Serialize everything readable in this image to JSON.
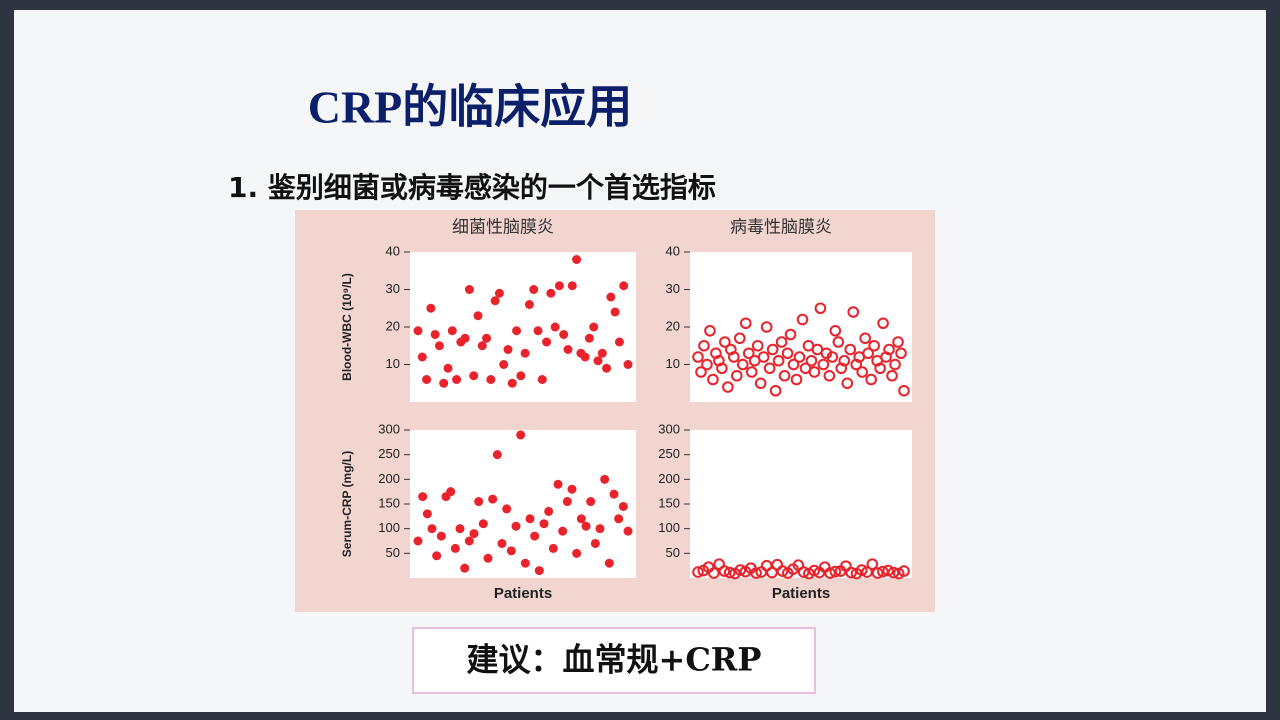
{
  "slide": {
    "title": "CRP的临床应用",
    "subtitle": "1. 鉴别细菌或病毒感染的一个首选指标",
    "suggestion": "建议：血常规+CRP"
  },
  "chart_data": [
    {
      "type": "scatter",
      "title": "细菌性脑膜炎",
      "ylabel": "Blood-WBC (10⁹/L)",
      "marker": "filled",
      "color": "#e8232b",
      "ylim": [
        0,
        40
      ],
      "yticks": [
        10,
        20,
        30,
        40
      ],
      "values": [
        19,
        12,
        6,
        25,
        18,
        15,
        5,
        9,
        19,
        6,
        16,
        17,
        30,
        7,
        23,
        15,
        17,
        6,
        27,
        29,
        10,
        14,
        5,
        19,
        7,
        13,
        26,
        30,
        19,
        6,
        16,
        29,
        20,
        31,
        18,
        14,
        31,
        38,
        13,
        12,
        17,
        20,
        11,
        13,
        9,
        28,
        24,
        16,
        31,
        10
      ]
    },
    {
      "type": "scatter",
      "title": "病毒性脑膜炎",
      "marker": "open",
      "color": "#e8232b",
      "ylim": [
        0,
        40
      ],
      "yticks": [
        10,
        20,
        30,
        40
      ],
      "values": [
        12,
        8,
        15,
        10,
        19,
        6,
        13,
        11,
        9,
        16,
        4,
        14,
        12,
        7,
        17,
        10,
        21,
        13,
        8,
        11,
        15,
        5,
        12,
        20,
        9,
        14,
        3,
        11,
        16,
        7,
        13,
        18,
        10,
        6,
        12,
        22,
        9,
        15,
        11,
        8,
        14,
        25,
        10,
        13,
        7,
        12,
        19,
        16,
        9,
        11,
        5,
        14,
        24,
        10,
        12,
        8,
        17,
        13,
        6,
        15,
        11,
        9,
        21,
        12,
        14,
        7,
        10,
        16,
        13,
        3
      ]
    },
    {
      "type": "scatter",
      "ylabel": "Serum-CRP (mg/L)",
      "xlabel": "Patients",
      "marker": "filled",
      "color": "#e8232b",
      "ylim": [
        0,
        300
      ],
      "yticks": [
        50,
        100,
        150,
        200,
        250,
        300
      ],
      "values": [
        75,
        165,
        130,
        100,
        45,
        85,
        165,
        175,
        60,
        100,
        20,
        75,
        90,
        155,
        110,
        40,
        160,
        250,
        70,
        140,
        55,
        105,
        290,
        30,
        120,
        85,
        15,
        110,
        135,
        60,
        190,
        95,
        155,
        180,
        50,
        120,
        105,
        155,
        70,
        100,
        200,
        30,
        170,
        120,
        145,
        95
      ]
    },
    {
      "type": "scatter",
      "xlabel": "Patients",
      "marker": "open",
      "color": "#e8232b",
      "ylim": [
        0,
        300
      ],
      "yticks": [
        50,
        100,
        150,
        200,
        250,
        300
      ],
      "values": [
        12,
        15,
        22,
        10,
        28,
        14,
        11,
        9,
        16,
        13,
        20,
        10,
        12,
        25,
        11,
        27,
        14,
        10,
        18,
        26,
        12,
        9,
        15,
        11,
        22,
        10,
        13,
        14,
        24,
        11,
        9,
        16,
        12,
        28,
        10,
        13,
        15,
        11,
        9,
        14
      ]
    }
  ]
}
